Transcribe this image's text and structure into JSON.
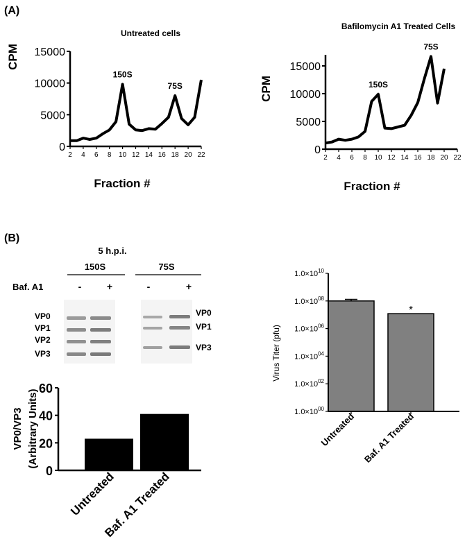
{
  "panel_a_label": "(A)",
  "panel_b_label": "(B)",
  "gel": {
    "title": "5 h.p.i.",
    "group_labels": [
      "150S",
      "75S"
    ],
    "treatment_label": "Baf. A1",
    "lane_signs": [
      "-",
      "+",
      "-",
      "+"
    ],
    "band_labels_left": [
      "VP0",
      "VP1",
      "VP2",
      "VP3"
    ],
    "band_labels_right": [
      "VP0",
      "VP1",
      "VP3"
    ]
  },
  "chart_data": [
    {
      "type": "line",
      "title": "Untreated cells",
      "xlabel": "Fraction #",
      "ylabel": "CPM",
      "xlim": [
        2,
        22
      ],
      "ylim": [
        0,
        15000
      ],
      "xticks": [
        2,
        4,
        6,
        8,
        10,
        12,
        14,
        16,
        18,
        20,
        22
      ],
      "yticks": [
        0,
        5000,
        10000,
        15000
      ],
      "x": [
        2,
        3,
        4,
        5,
        6,
        7,
        8,
        9,
        10,
        11,
        12,
        13,
        14,
        15,
        16,
        17,
        18,
        19,
        20,
        21,
        22
      ],
      "y": [
        900,
        900,
        1300,
        1100,
        1300,
        2000,
        2600,
        3900,
        9800,
        3500,
        2600,
        2500,
        2800,
        2700,
        3600,
        4600,
        8000,
        4400,
        3400,
        4600,
        10500
      ],
      "annotations": [
        {
          "text": "150S",
          "x": 10
        },
        {
          "text": "75S",
          "x": 18
        }
      ]
    },
    {
      "type": "line",
      "title": "Bafilomycin A1 Treated Cells",
      "xlabel": "Fraction #",
      "ylabel": "CPM",
      "xlim": [
        2,
        22
      ],
      "ylim": [
        0,
        17000
      ],
      "xticks": [
        2,
        4,
        6,
        8,
        10,
        12,
        14,
        16,
        18,
        20,
        22
      ],
      "yticks": [
        0,
        5000,
        10000,
        15000
      ],
      "x": [
        2,
        3,
        4,
        5,
        6,
        7,
        8,
        9,
        10,
        11,
        12,
        13,
        14,
        15,
        16,
        17,
        18,
        19,
        20
      ],
      "y": [
        1100,
        1300,
        1800,
        1600,
        1800,
        2200,
        3200,
        8600,
        9900,
        3800,
        3700,
        4000,
        4300,
        6100,
        8400,
        12700,
        16700,
        8300,
        14500
      ],
      "annotations": [
        {
          "text": "150S",
          "x": 10
        },
        {
          "text": "75S",
          "x": 18
        }
      ]
    },
    {
      "type": "bar",
      "categories": [
        "Untreated",
        "Baf. A1 Treated"
      ],
      "values": [
        23,
        41
      ],
      "ylabel_lines": [
        "VP0/VP3",
        "(Arbitrary Units)"
      ],
      "ylim": [
        0,
        60
      ],
      "yticks": [
        0,
        20,
        40,
        60
      ],
      "color": "#000000"
    },
    {
      "type": "bar",
      "categories": [
        "Untreated",
        "Baf. A1 Treated"
      ],
      "values": [
        100000000,
        12000000
      ],
      "errors": [
        30000000,
        0
      ],
      "ylabel": "Virus Titer (pfu)",
      "yscale": "log",
      "ylim": [
        1,
        10000000000
      ],
      "ytick_base": [
        "1.0×10",
        "1.0×10",
        "1.0×10",
        "1.0×10",
        "1.0×10",
        "1.0×10"
      ],
      "ytick_exp": [
        "00",
        "02",
        "04",
        "06",
        "08",
        "10"
      ],
      "significance": [
        "",
        "*"
      ],
      "color": "#808080"
    }
  ]
}
